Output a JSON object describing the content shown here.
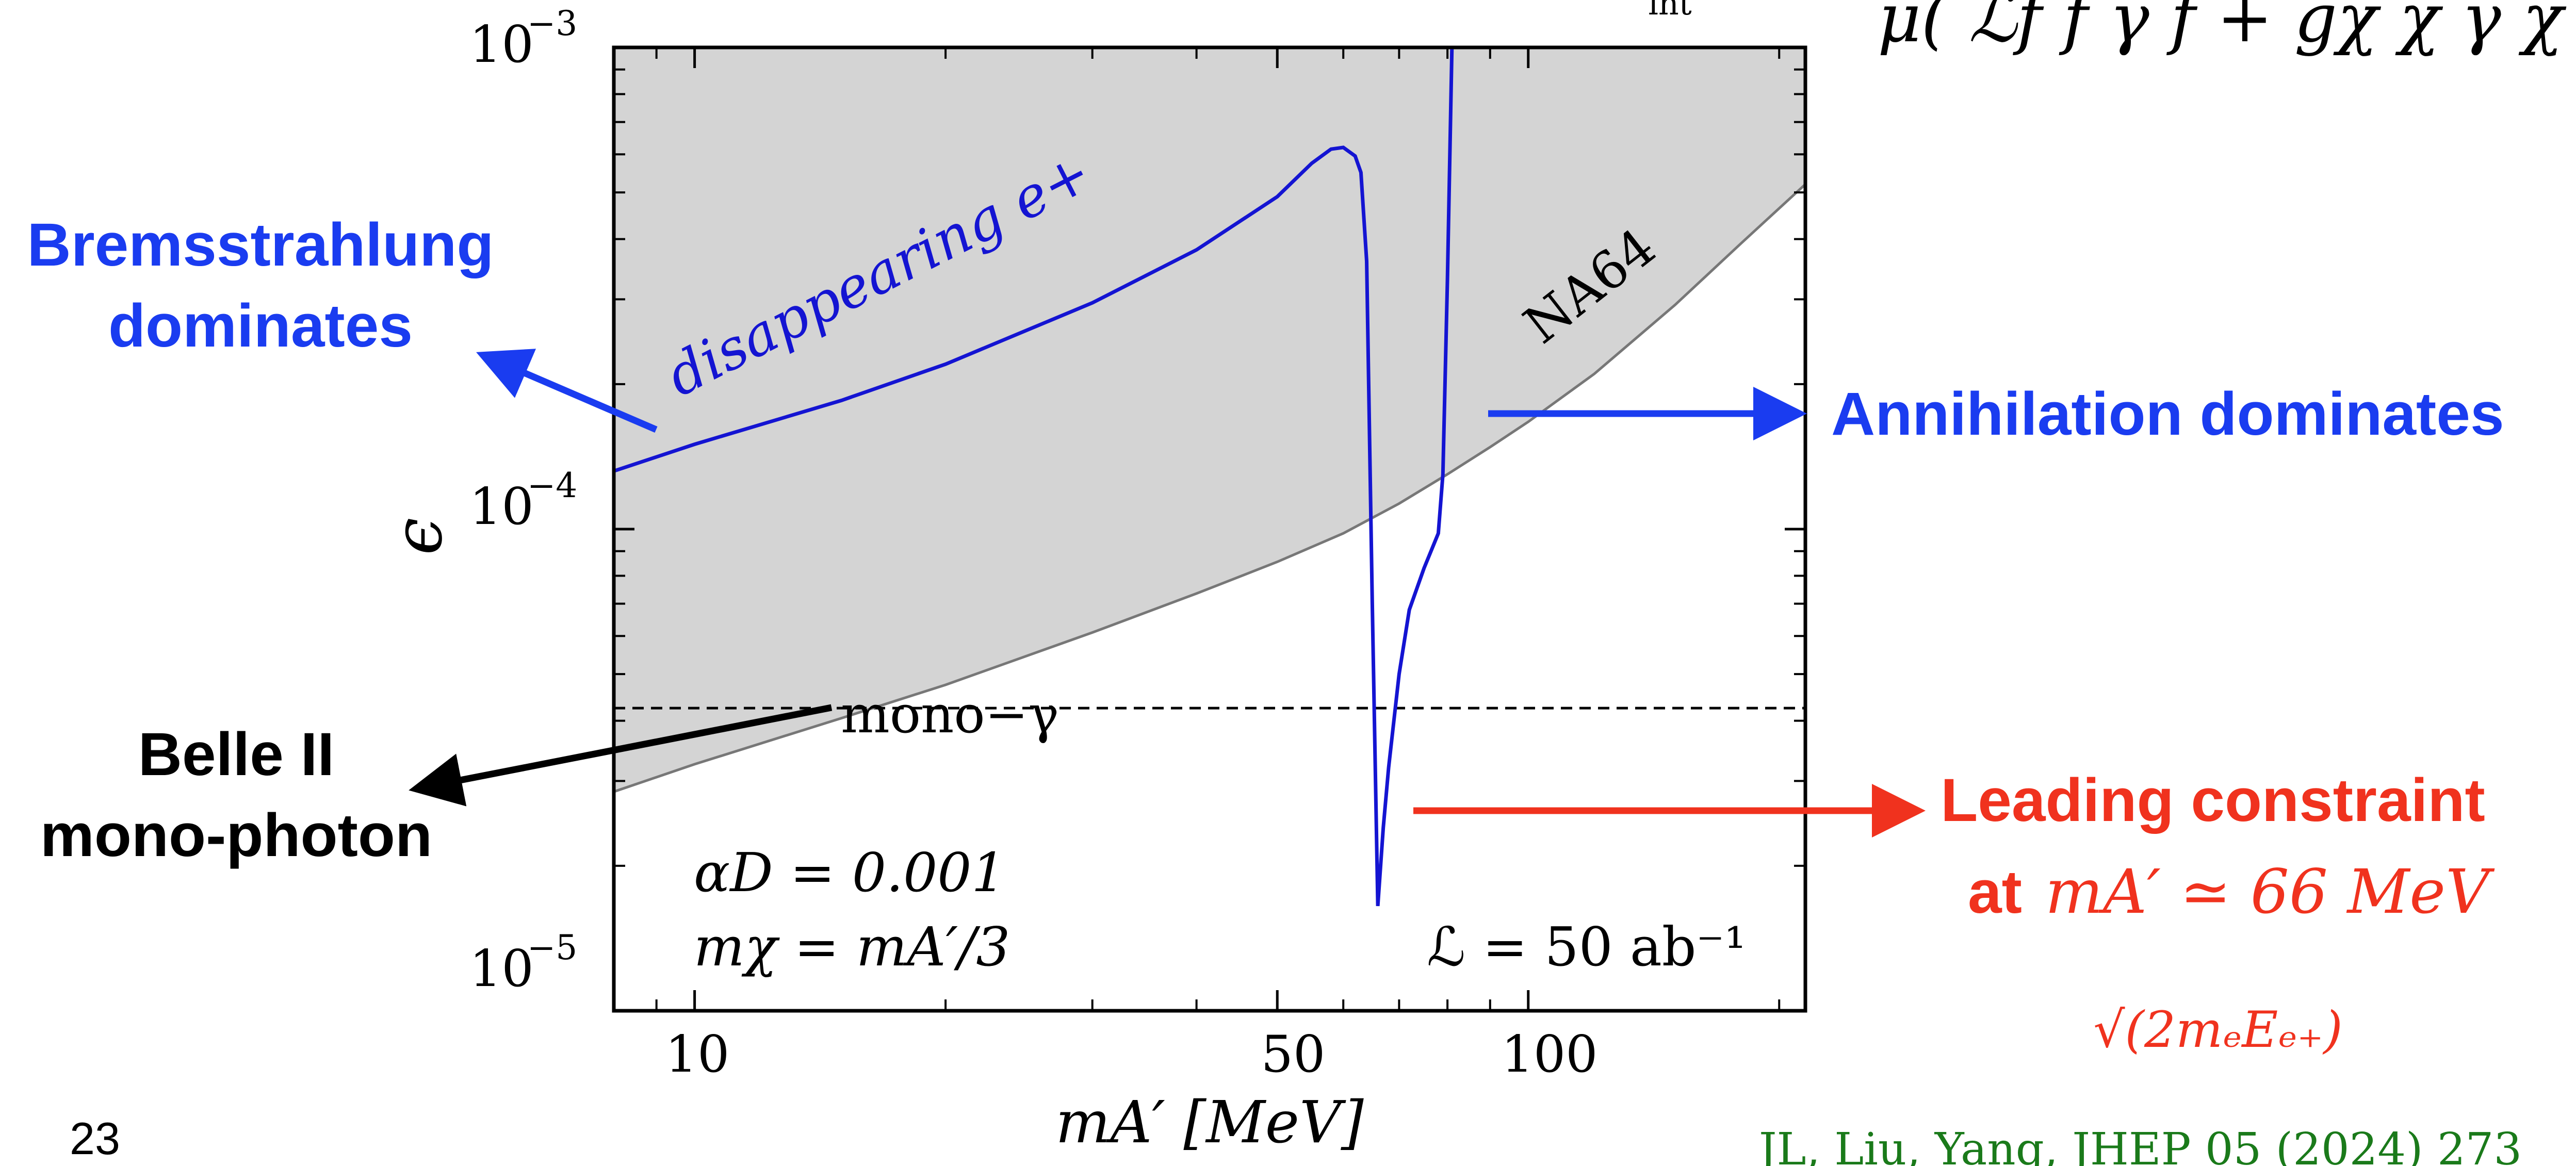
{
  "slide_number": "23",
  "citation": "JL, Liu, Yang, JHEP 05 (2024) 273",
  "equation_fragment": {
    "sub": "int",
    "tail": "μ( ℒf f γ f + gχ χ γ χ"
  },
  "annotations": {
    "bremsstrahlung": {
      "line1": "Bremsstrahlung",
      "line2": "dominates"
    },
    "annihilation": "Annihilation dominates",
    "belle": {
      "line1": "Belle II",
      "line2": "mono-photon"
    },
    "leading": {
      "line1": "Leading constraint",
      "line2_prefix": "at",
      "line2_math": "mA′ ≃ 66 MeV",
      "sqrt_label": "√(2mₑEₑ₊)"
    }
  },
  "colors": {
    "blue": "#1a3cf0",
    "curve_blue": "#1414d2",
    "red": "#f0321e",
    "black": "#000000",
    "gray_fill": "#d4d4d4",
    "gray_line": "#777777",
    "green": "#1a7a1a"
  },
  "chart_data": {
    "type": "line",
    "xscale": "log",
    "yscale": "log",
    "xlim": [
      8,
      215
    ],
    "ylim": [
      1e-05,
      0.001
    ],
    "xlabel": "mA′ [MeV]",
    "ylabel": "ϵ",
    "xticks": [
      10,
      50,
      100
    ],
    "xtick_labels": [
      "10",
      "50",
      "100"
    ],
    "yticks": [
      1e-05,
      0.0001,
      0.001
    ],
    "ytick_labels": [
      {
        "base": "10",
        "exp": "−5"
      },
      {
        "base": "10",
        "exp": "−4"
      },
      {
        "base": "10",
        "exp": "−3"
      }
    ],
    "params": [
      "αD = 0.001",
      "mχ = mA′/3"
    ],
    "luminosity": "ℒ = 50 ab⁻¹",
    "series": [
      {
        "name": "NA64",
        "style": "filled-excluded-region",
        "x": [
          8,
          10,
          15,
          20,
          30,
          40,
          50,
          60,
          70,
          80,
          90,
          100,
          120,
          150,
          180,
          215
        ],
        "y": [
          2.85e-05,
          3.25e-05,
          4.05e-05,
          4.75e-05,
          6.1e-05,
          7.35e-05,
          8.55e-05,
          9.8e-05,
          0.000113,
          0.00013,
          0.000148,
          0.000167,
          0.00021,
          0.000292,
          0.000392,
          0.00052
        ]
      },
      {
        "name": "disappearing e+",
        "style": "solid",
        "x": [
          8,
          10,
          15,
          20,
          30,
          40,
          50,
          55,
          58,
          60,
          62,
          63,
          64,
          65,
          66,
          67,
          68,
          70,
          72,
          75,
          78,
          79,
          80,
          81
        ],
        "y": [
          0.000132,
          0.00015,
          0.000185,
          0.00022,
          0.000295,
          0.00038,
          0.00049,
          0.000575,
          0.000615,
          0.00062,
          0.000595,
          0.00055,
          0.00036,
          7e-05,
          1.65e-05,
          2.4e-05,
          3.2e-05,
          5e-05,
          6.8e-05,
          8.3e-05,
          9.8e-05,
          0.00013,
          0.00033,
          0.001
        ]
      },
      {
        "name": "mono−γ",
        "style": "dashed",
        "x": [
          8,
          215
        ],
        "y": [
          4.25e-05,
          4.25e-05
        ]
      }
    ]
  }
}
